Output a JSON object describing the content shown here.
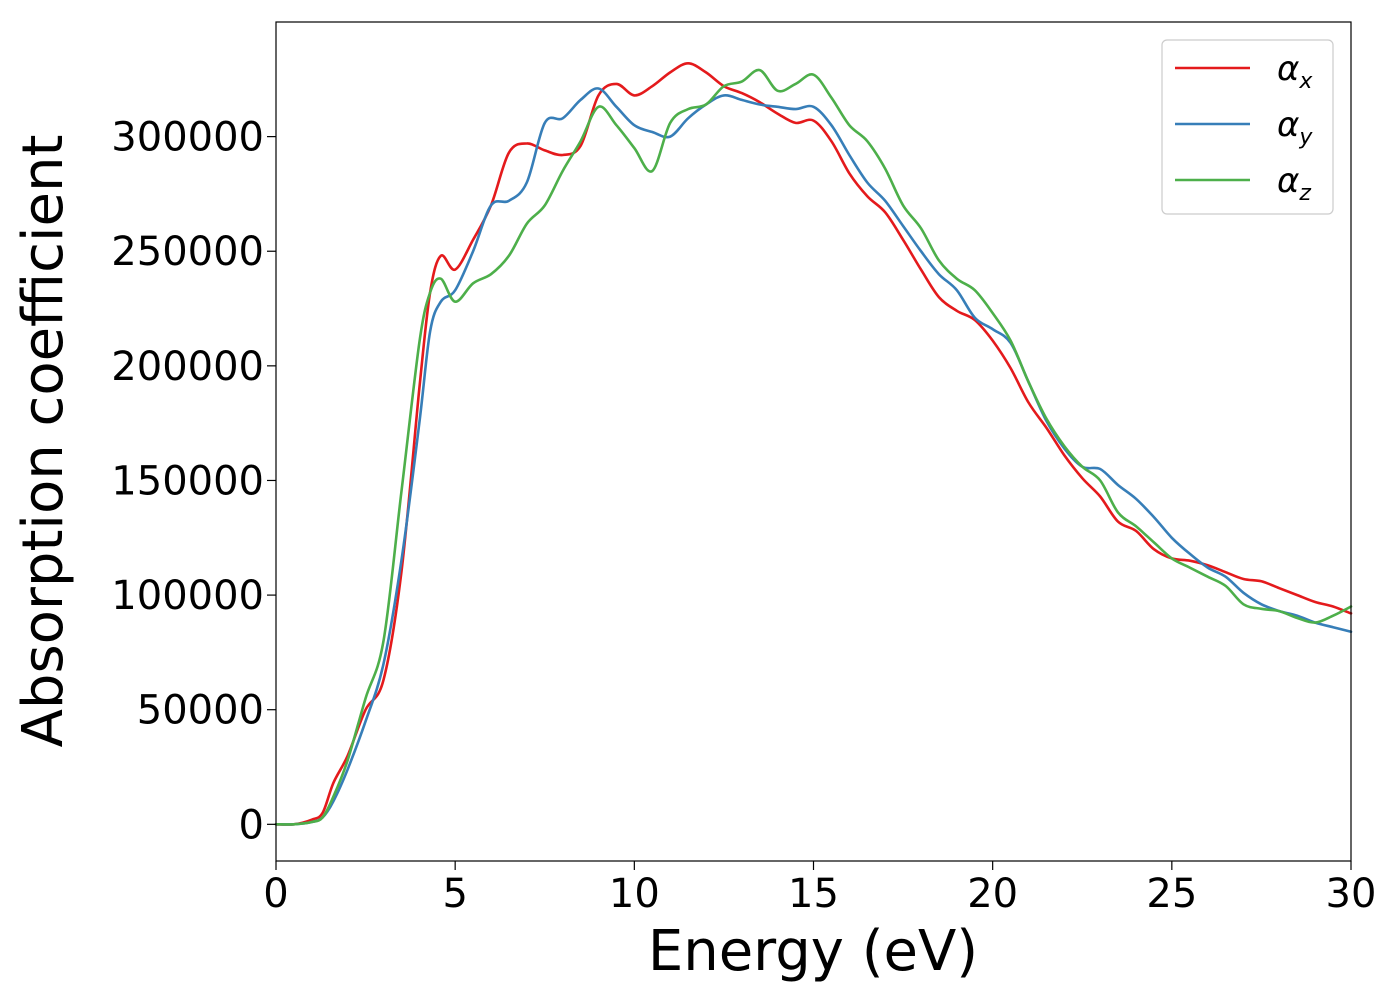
{
  "chart_data": {
    "type": "line",
    "title": "",
    "xlabel": "Energy (eV)",
    "ylabel": "Absorption coefficient",
    "xlim": [
      0,
      30
    ],
    "ylim": [
      -16000,
      350000
    ],
    "xticks": [
      0,
      5,
      10,
      15,
      20,
      25,
      30
    ],
    "yticks": [
      0,
      50000,
      100000,
      150000,
      200000,
      250000,
      300000
    ],
    "grid": false,
    "legend_position": "top-right",
    "series": [
      {
        "name": "αx",
        "legend_symbol": "α",
        "legend_subscript": "x",
        "color": "#e41a1c",
        "x": [
          0,
          0.5,
          1.0,
          1.3,
          1.6,
          2.0,
          2.5,
          3.0,
          3.5,
          4.0,
          4.3,
          4.6,
          5.0,
          5.5,
          6.0,
          6.5,
          7.0,
          7.5,
          8.0,
          8.5,
          9.0,
          9.5,
          10.0,
          10.5,
          11.0,
          11.5,
          12.0,
          12.5,
          13.0,
          13.5,
          14.0,
          14.5,
          15.0,
          15.5,
          16.0,
          16.5,
          17.0,
          17.5,
          18.0,
          18.5,
          19.0,
          19.5,
          20.0,
          20.5,
          21.0,
          21.5,
          22.0,
          22.5,
          23.0,
          23.5,
          24.0,
          24.5,
          25.0,
          25.5,
          26.0,
          26.5,
          27.0,
          27.5,
          28.0,
          28.5,
          29.0,
          29.5,
          30.0
        ],
        "values": [
          0,
          0,
          2000,
          5000,
          18000,
          30000,
          50000,
          63000,
          110000,
          190000,
          232000,
          248000,
          242000,
          255000,
          270000,
          293000,
          297000,
          294000,
          292000,
          296000,
          318000,
          323000,
          318000,
          322000,
          328000,
          332000,
          328000,
          322000,
          319000,
          315000,
          310000,
          306000,
          307000,
          298000,
          284000,
          274000,
          267000,
          255000,
          242000,
          230000,
          224000,
          220000,
          211000,
          199000,
          184000,
          173000,
          161000,
          151000,
          143000,
          132000,
          128000,
          120000,
          116000,
          115000,
          113000,
          110000,
          107000,
          106000,
          103000,
          100000,
          97000,
          95000,
          92000
        ]
      },
      {
        "name": "αy",
        "legend_symbol": "α",
        "legend_subscript": "y",
        "color": "#377eb8",
        "x": [
          0,
          0.5,
          1.0,
          1.3,
          1.6,
          2.0,
          2.5,
          3.0,
          3.5,
          4.0,
          4.3,
          4.6,
          5.0,
          5.5,
          6.0,
          6.5,
          7.0,
          7.5,
          8.0,
          8.5,
          9.0,
          9.5,
          10.0,
          10.5,
          11.0,
          11.5,
          12.0,
          12.5,
          13.0,
          13.5,
          14.0,
          14.5,
          15.0,
          15.5,
          16.0,
          16.5,
          17.0,
          17.5,
          18.0,
          18.5,
          19.0,
          19.5,
          20.0,
          20.5,
          21.0,
          21.5,
          22.0,
          22.5,
          23.0,
          23.5,
          24.0,
          24.5,
          25.0,
          25.5,
          26.0,
          26.5,
          27.0,
          27.5,
          28.0,
          28.5,
          29.0,
          29.5,
          30.0
        ],
        "values": [
          0,
          0,
          1000,
          3000,
          10000,
          24000,
          45000,
          70000,
          115000,
          175000,
          215000,
          228000,
          233000,
          250000,
          270000,
          272000,
          280000,
          306000,
          308000,
          316000,
          321000,
          313000,
          305000,
          302000,
          300000,
          308000,
          314000,
          318000,
          316000,
          314000,
          313000,
          312000,
          313000,
          305000,
          292000,
          280000,
          272000,
          261000,
          250000,
          240000,
          233000,
          221000,
          216000,
          210000,
          193000,
          176000,
          164000,
          156000,
          155000,
          148000,
          142000,
          134000,
          125000,
          118000,
          112000,
          108000,
          101000,
          96000,
          93000,
          91000,
          88000,
          86000,
          84000
        ]
      },
      {
        "name": "αz",
        "legend_symbol": "α",
        "legend_subscript": "z",
        "color": "#4daf4a",
        "x": [
          0,
          0.5,
          1.0,
          1.3,
          1.6,
          2.0,
          2.5,
          3.0,
          3.5,
          4.0,
          4.3,
          4.6,
          5.0,
          5.5,
          6.0,
          6.5,
          7.0,
          7.5,
          8.0,
          8.5,
          9.0,
          9.5,
          10.0,
          10.5,
          11.0,
          11.5,
          12.0,
          12.5,
          13.0,
          13.5,
          14.0,
          14.5,
          15.0,
          15.5,
          16.0,
          16.5,
          17.0,
          17.5,
          18.0,
          18.5,
          19.0,
          19.5,
          20.0,
          20.5,
          21.0,
          21.5,
          22.0,
          22.5,
          23.0,
          23.5,
          24.0,
          24.5,
          25.0,
          25.5,
          26.0,
          26.5,
          27.0,
          27.5,
          28.0,
          28.5,
          29.0,
          29.5,
          30.0
        ],
        "values": [
          0,
          0,
          1000,
          3000,
          12000,
          28000,
          55000,
          80000,
          145000,
          210000,
          232000,
          238000,
          228000,
          236000,
          240000,
          248000,
          262000,
          270000,
          285000,
          298000,
          313000,
          305000,
          295000,
          285000,
          306000,
          312000,
          314000,
          322000,
          324000,
          329000,
          320000,
          323000,
          327000,
          317000,
          305000,
          298000,
          286000,
          270000,
          260000,
          246000,
          238000,
          233000,
          223000,
          211000,
          193000,
          177000,
          165000,
          156000,
          150000,
          136000,
          130000,
          123000,
          116000,
          112000,
          108000,
          104000,
          96000,
          94000,
          93000,
          90000,
          88000,
          91000,
          95000
        ]
      }
    ]
  }
}
